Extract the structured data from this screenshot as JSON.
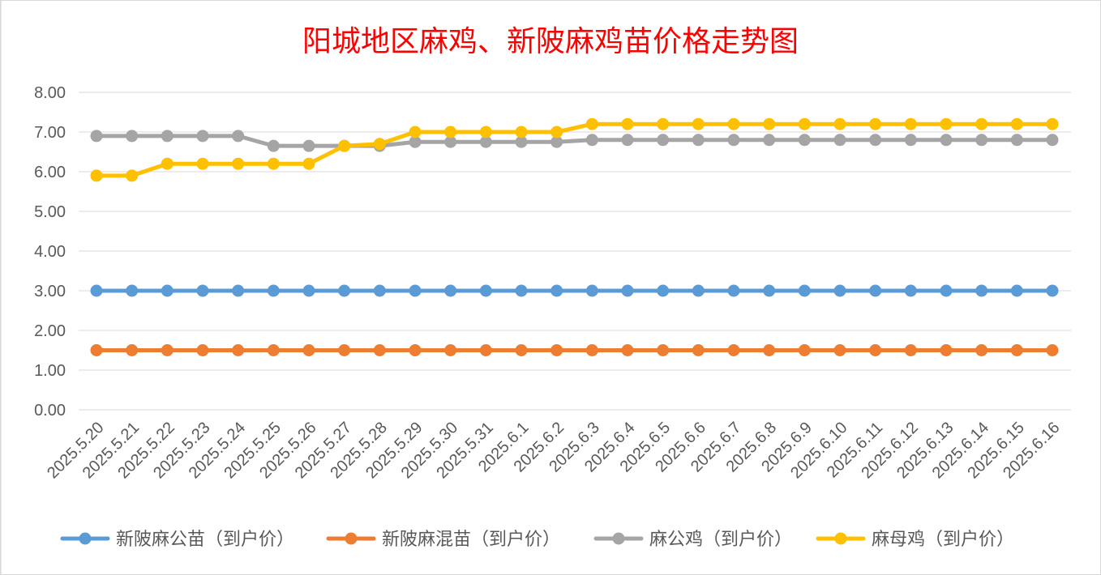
{
  "chart_data": {
    "type": "line",
    "title": "阳城地区麻鸡、新陂麻鸡苗价格走势图",
    "title_color": "#ff0000",
    "xlabel": "",
    "ylabel": "",
    "ylim": [
      0,
      8
    ],
    "y_ticks": [
      "0.00",
      "1.00",
      "2.00",
      "3.00",
      "4.00",
      "5.00",
      "6.00",
      "7.00",
      "8.00"
    ],
    "grid": true,
    "legend_position": "bottom",
    "categories": [
      "2025.5.20",
      "2025.5.21",
      "2025.5.22",
      "2025.5.23",
      "2025.5.24",
      "2025.5.25",
      "2025.5.26",
      "2025.5.27",
      "2025.5.28",
      "2025.5.29",
      "2025.5.30",
      "2025.5.31",
      "2025.6.1",
      "2025.6.2",
      "2025.6.3",
      "2025.6.4",
      "2025.6.5",
      "2025.6.6",
      "2025.6.7",
      "2025.6.8",
      "2025.6.9",
      "2025.6.10",
      "2025.6.11",
      "2025.6.12",
      "2025.6.13",
      "2025.6.14",
      "2025.6.15",
      "2025.6.16"
    ],
    "series": [
      {
        "name": "新陂麻公苗（到户价）",
        "color": "#5b9bd5",
        "values": [
          3.0,
          3.0,
          3.0,
          3.0,
          3.0,
          3.0,
          3.0,
          3.0,
          3.0,
          3.0,
          3.0,
          3.0,
          3.0,
          3.0,
          3.0,
          3.0,
          3.0,
          3.0,
          3.0,
          3.0,
          3.0,
          3.0,
          3.0,
          3.0,
          3.0,
          3.0,
          3.0,
          3.0
        ]
      },
      {
        "name": "新陂麻混苗（到户价）",
        "color": "#ed7d31",
        "values": [
          1.5,
          1.5,
          1.5,
          1.5,
          1.5,
          1.5,
          1.5,
          1.5,
          1.5,
          1.5,
          1.5,
          1.5,
          1.5,
          1.5,
          1.5,
          1.5,
          1.5,
          1.5,
          1.5,
          1.5,
          1.5,
          1.5,
          1.5,
          1.5,
          1.5,
          1.5,
          1.5,
          1.5
        ]
      },
      {
        "name": "麻公鸡（到户价）",
        "color": "#a5a5a5",
        "values": [
          6.9,
          6.9,
          6.9,
          6.9,
          6.9,
          6.65,
          6.65,
          6.65,
          6.65,
          6.75,
          6.75,
          6.75,
          6.75,
          6.75,
          6.8,
          6.8,
          6.8,
          6.8,
          6.8,
          6.8,
          6.8,
          6.8,
          6.8,
          6.8,
          6.8,
          6.8,
          6.8,
          6.8
        ]
      },
      {
        "name": "麻母鸡（到户价）",
        "color": "#ffc000",
        "values": [
          5.9,
          5.9,
          6.2,
          6.2,
          6.2,
          6.2,
          6.2,
          6.65,
          6.7,
          7.0,
          7.0,
          7.0,
          7.0,
          7.0,
          7.2,
          7.2,
          7.2,
          7.2,
          7.2,
          7.2,
          7.2,
          7.2,
          7.2,
          7.2,
          7.2,
          7.2,
          7.2,
          7.2
        ]
      }
    ]
  }
}
